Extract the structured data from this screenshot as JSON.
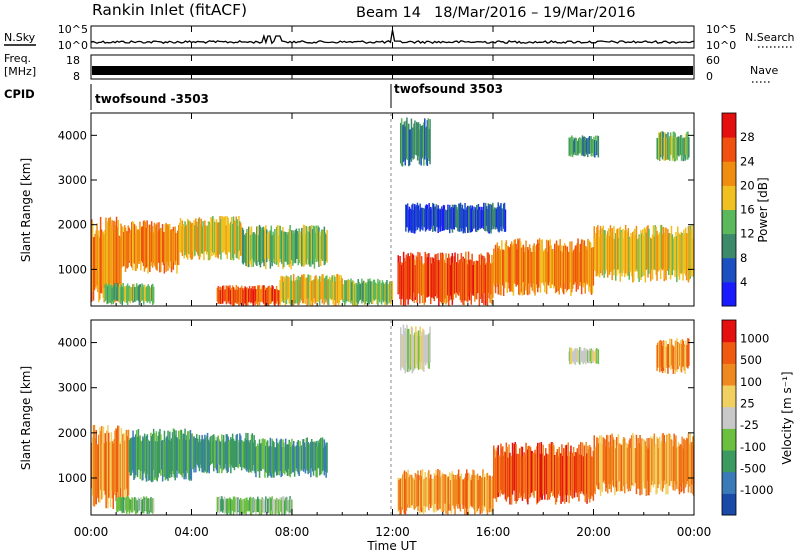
{
  "header": {
    "station": "Rankin Inlet (fitACF)",
    "beam": "Beam 14",
    "dates": "18/Mar/2016 – 19/Mar/2016"
  },
  "strip_panels": {
    "nsky": {
      "left_label": "N.Sky",
      "right_label": "N.Search",
      "left_ticks": [
        "10^5",
        "10^0"
      ],
      "right_ticks": [
        "10^5",
        "10^0"
      ]
    },
    "freq": {
      "left_label_top": "Freq.",
      "left_label_bottom": "[MHz]",
      "right_label": "Nave",
      "left_ticks": [
        "18",
        "8"
      ],
      "right_ticks": [
        "60",
        "0"
      ]
    },
    "cpid": {
      "label": "CPID",
      "modes": [
        {
          "name": "twofsound -3503",
          "start_hour": 0
        },
        {
          "name": "twofsound 3503",
          "start_hour": 12
        }
      ]
    }
  },
  "time_axis": {
    "label": "Time UT",
    "tick_labels": [
      "00:00",
      "04:00",
      "08:00",
      "12:00",
      "16:00",
      "20:00",
      "00:00"
    ]
  },
  "chart_data": [
    {
      "type": "heatmap",
      "name": "power",
      "ylabel": "Slant Range [km]",
      "yticks": [
        1000,
        2000,
        3000,
        4000
      ],
      "ylim": [
        180,
        4500
      ],
      "xlim_hours": [
        0,
        24
      ],
      "colorbar": {
        "label": "Power [dB]",
        "tick_labels": [
          "4",
          "8",
          "12",
          "16",
          "20",
          "24",
          "28"
        ],
        "colors": [
          "#1a1aff",
          "#1c4fc0",
          "#3d8a6a",
          "#5cb85c",
          "#f0c020",
          "#f08c10",
          "#f05010",
          "#e41010"
        ],
        "range": [
          0,
          32
        ]
      },
      "regions": [
        {
          "h0": 0.0,
          "h1": 1.2,
          "r0": 250,
          "r1": 2200,
          "level": 5
        },
        {
          "h0": 1.2,
          "h1": 3.5,
          "r0": 900,
          "r1": 2100,
          "level": 5
        },
        {
          "h0": 3.5,
          "h1": 6.0,
          "r0": 1200,
          "r1": 2200,
          "level": 4
        },
        {
          "h0": 6.0,
          "h1": 9.4,
          "r0": 1000,
          "r1": 2000,
          "level": 3
        },
        {
          "h0": 5.0,
          "h1": 7.5,
          "r0": 180,
          "r1": 650,
          "level": 6
        },
        {
          "h0": 0.5,
          "h1": 2.5,
          "r0": 200,
          "r1": 700,
          "level": 3
        },
        {
          "h0": 7.5,
          "h1": 10.0,
          "r0": 180,
          "r1": 900,
          "level": 4
        },
        {
          "h0": 10.0,
          "h1": 12.0,
          "r0": 180,
          "r1": 800,
          "level": 3
        },
        {
          "h0": 12.2,
          "h1": 16.0,
          "r0": 180,
          "r1": 1400,
          "level": 6
        },
        {
          "h0": 16.0,
          "h1": 20.0,
          "r0": 400,
          "r1": 1700,
          "level": 5
        },
        {
          "h0": 20.0,
          "h1": 24.0,
          "r0": 700,
          "r1": 2000,
          "level": 4
        },
        {
          "h0": 12.3,
          "h1": 13.5,
          "r0": 3300,
          "r1": 4400,
          "level": 2
        },
        {
          "h0": 19.0,
          "h1": 20.2,
          "r0": 3500,
          "r1": 4000,
          "level": 2
        },
        {
          "h0": 22.5,
          "h1": 23.8,
          "r0": 3400,
          "r1": 4100,
          "level": 3
        },
        {
          "h0": 12.5,
          "h1": 16.5,
          "r0": 1800,
          "r1": 2500,
          "level": 1
        }
      ]
    },
    {
      "type": "heatmap",
      "name": "velocity",
      "ylabel": "Slant Range [km]",
      "yticks": [
        1000,
        2000,
        3000,
        4000
      ],
      "ylim": [
        180,
        4500
      ],
      "xlim_hours": [
        0,
        24
      ],
      "colorbar": {
        "label": "Velocity [m s⁻¹]",
        "tick_labels": [
          "1000",
          "500",
          "100",
          "25",
          "-25",
          "-100",
          "-500",
          "-1000"
        ],
        "colors": [
          "#1a4aa8",
          "#3a7ab8",
          "#3a9a60",
          "#6cc040",
          "#c8c8c8",
          "#f0d060",
          "#f08820",
          "#f05a10",
          "#e41010"
        ],
        "range": [
          -1200,
          1200
        ]
      },
      "regions": [
        {
          "h0": 0.0,
          "h1": 1.5,
          "r0": 300,
          "r1": 2200,
          "level": 6
        },
        {
          "h0": 1.5,
          "h1": 4.0,
          "r0": 900,
          "r1": 2100,
          "level": 2
        },
        {
          "h0": 4.0,
          "h1": 6.5,
          "r0": 1100,
          "r1": 2000,
          "level": 2
        },
        {
          "h0": 6.5,
          "h1": 9.4,
          "r0": 1000,
          "r1": 1900,
          "level": 2
        },
        {
          "h0": 1.0,
          "h1": 2.5,
          "r0": 200,
          "r1": 600,
          "level": 3
        },
        {
          "h0": 5.0,
          "h1": 8.0,
          "r0": 180,
          "r1": 600,
          "level": 3
        },
        {
          "h0": 12.2,
          "h1": 16.0,
          "r0": 180,
          "r1": 1200,
          "level": 6
        },
        {
          "h0": 16.0,
          "h1": 20.0,
          "r0": 400,
          "r1": 1800,
          "level": 7
        },
        {
          "h0": 20.0,
          "h1": 24.0,
          "r0": 600,
          "r1": 2000,
          "level": 6
        },
        {
          "h0": 12.3,
          "h1": 13.5,
          "r0": 3300,
          "r1": 4400,
          "level": 4
        },
        {
          "h0": 19.0,
          "h1": 20.2,
          "r0": 3500,
          "r1": 3900,
          "level": 4
        },
        {
          "h0": 22.5,
          "h1": 23.8,
          "r0": 3300,
          "r1": 4100,
          "level": 6
        }
      ]
    }
  ]
}
